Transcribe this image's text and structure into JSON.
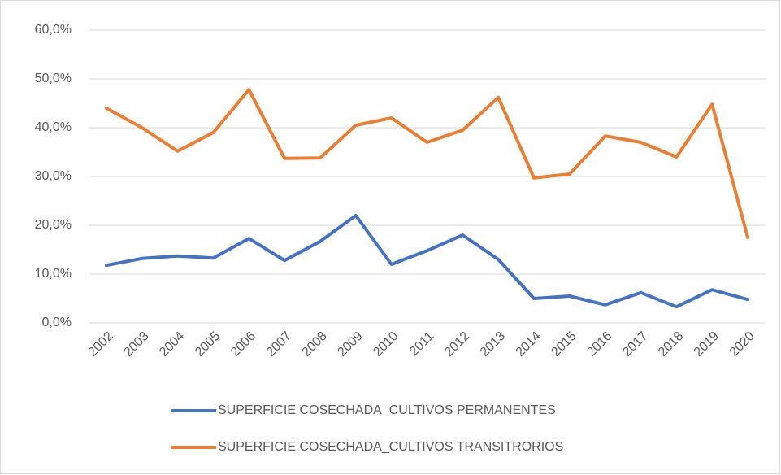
{
  "chart_data": {
    "type": "line",
    "categories": [
      "2002",
      "2003",
      "2004",
      "2005",
      "2006",
      "2007",
      "2008",
      "2009",
      "2010",
      "2011",
      "2012",
      "2013",
      "2014",
      "2015",
      "2016",
      "2017",
      "2018",
      "2019",
      "2020"
    ],
    "series": [
      {
        "name": "SUPERFICIE COSECHADA_CULTIVOS PERMANENTES",
        "color": "#4472c4",
        "values": [
          11.8,
          13.2,
          13.7,
          13.3,
          17.3,
          12.8,
          16.7,
          22.0,
          12.0,
          14.8,
          18.0,
          13.0,
          5.0,
          5.5,
          3.7,
          6.2,
          3.3,
          6.8,
          4.8
        ]
      },
      {
        "name": "SUPERFICIE COSECHADA_CULTIVOS TRANSITRORIOS",
        "color": "#ed7d31",
        "values": [
          44.0,
          40.0,
          35.2,
          39.0,
          47.8,
          33.7,
          33.8,
          40.5,
          42.0,
          37.0,
          39.5,
          46.2,
          29.7,
          30.5,
          38.3,
          37.0,
          34.0,
          44.8,
          17.5
        ]
      }
    ],
    "ylim": [
      0,
      60
    ],
    "yticks": [
      {
        "value": 0,
        "label": "0,0%"
      },
      {
        "value": 10,
        "label": "10,0%"
      },
      {
        "value": 20,
        "label": "20,0%"
      },
      {
        "value": 30,
        "label": "30,0%"
      },
      {
        "value": 40,
        "label": "40,0%"
      },
      {
        "value": 50,
        "label": "50,0%"
      },
      {
        "value": 60,
        "label": "60,0%"
      }
    ],
    "grid": true,
    "legend": "bottom"
  }
}
